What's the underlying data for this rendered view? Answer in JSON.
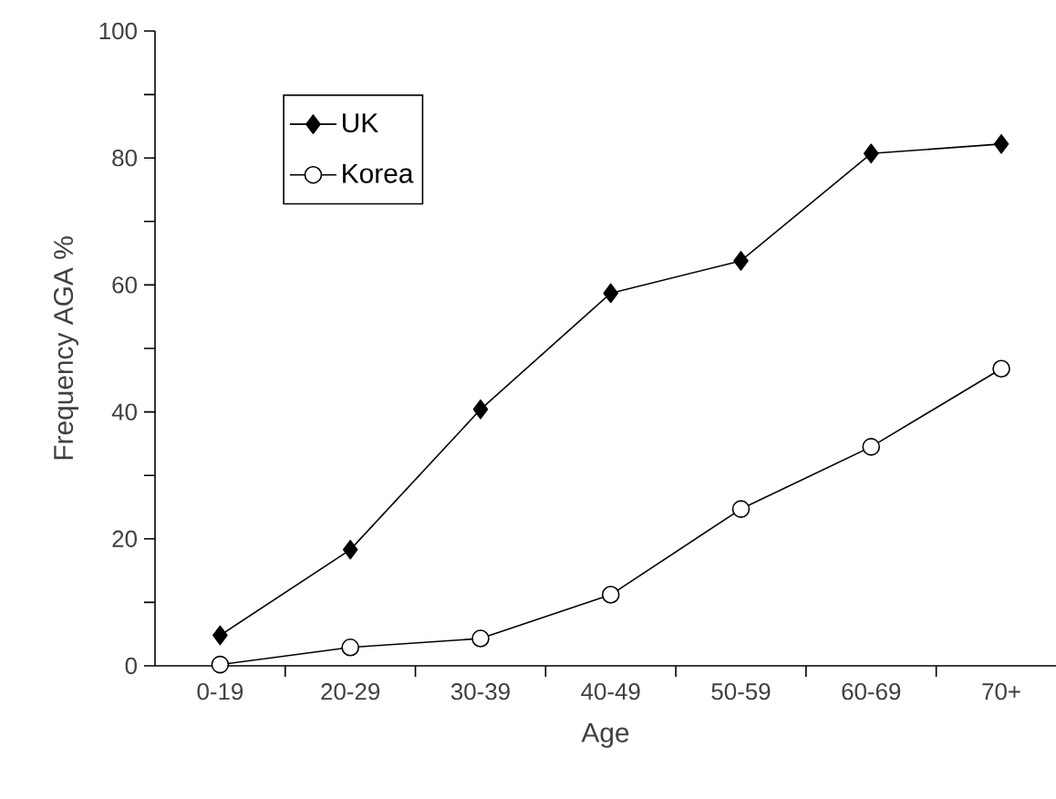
{
  "chart_data": {
    "type": "line",
    "xlabel": "Age",
    "ylabel": "Frequency AGA %",
    "categories": [
      "0-19",
      "20-29",
      "30-39",
      "40-49",
      "50-59",
      "60-69",
      "70+"
    ],
    "series": [
      {
        "name": "UK",
        "color": "#000000",
        "marker": "diamond",
        "values": [
          4.8,
          18.3,
          40.4,
          58.7,
          63.8,
          80.7,
          82.2
        ]
      },
      {
        "name": "Korea",
        "color": "#000000",
        "marker": "circle",
        "values": [
          0.2,
          2.9,
          4.3,
          11.2,
          24.7,
          34.5,
          46.8
        ]
      }
    ],
    "ylim": [
      0,
      100
    ],
    "yticks": [
      0,
      {
        "value": 10,
        "label": null
      },
      20,
      {
        "value": 30,
        "label": null
      },
      40,
      {
        "value": 50,
        "label": null
      },
      60,
      {
        "value": 70,
        "label": null
      },
      80,
      {
        "value": 90,
        "label": null
      },
      100
    ],
    "grid": false,
    "legend": "top left",
    "line_style": "solid"
  }
}
